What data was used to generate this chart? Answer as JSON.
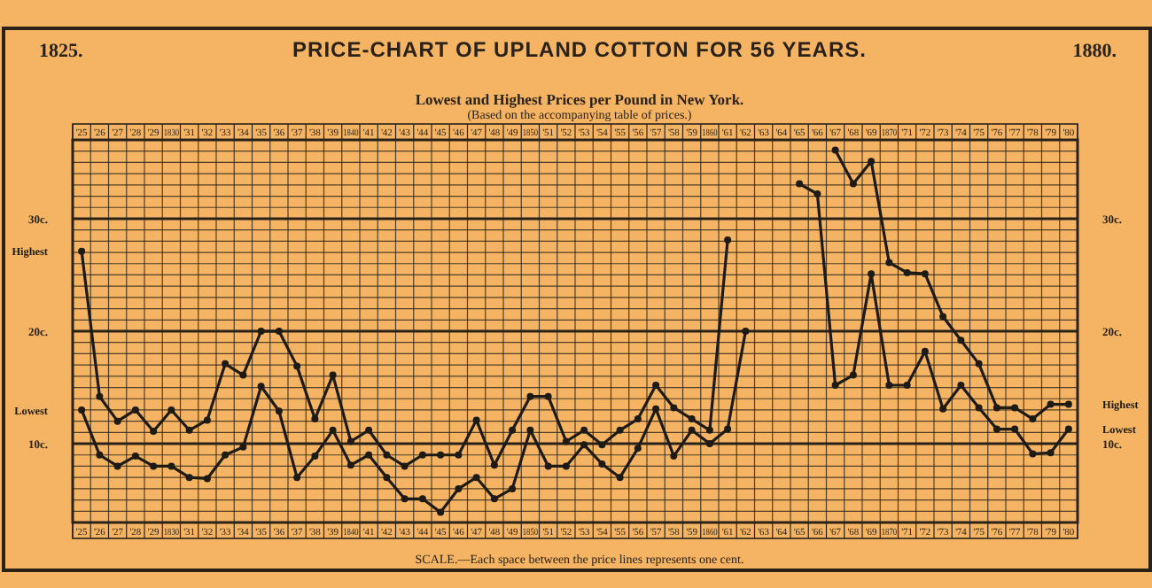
{
  "chart_data": {
    "type": "line",
    "title": "PRICE-CHART OF UPLAND COTTON FOR 56 YEARS.",
    "subtitle": "Lowest and Highest Prices per Pound in New York.",
    "annotations": [
      "1825.",
      "1880.",
      "(Based on the accompanying table of prices.)",
      "SCALE.—Each space between the price lines represents one cent."
    ],
    "categories": [
      "'25",
      "'26",
      "'27",
      "'28",
      "'29",
      "1830",
      "'31",
      "'32",
      "'33",
      "'34",
      "'35",
      "'36",
      "'37",
      "'38",
      "'39",
      "1840",
      "'41",
      "'42",
      "'43",
      "'44",
      "'45",
      "'46",
      "'47",
      "'48",
      "'49",
      "1850",
      "'51",
      "'52",
      "'53",
      "'54",
      "'55",
      "'56",
      "'57",
      "'58",
      "'59",
      "1860",
      "'61",
      "'62",
      "'63",
      "'64",
      "'65",
      "'66",
      "'67",
      "'68",
      "'69",
      "1870",
      "'71",
      "'72",
      "'73",
      "'74",
      "'75",
      "'76",
      "'77",
      "'78",
      "'79",
      "'80"
    ],
    "series": [
      {
        "name": "Highest",
        "color": "#1e1a14",
        "values": [
          27.1,
          14.2,
          12.0,
          13.0,
          11.1,
          13.0,
          11.2,
          12.1,
          17.1,
          16.1,
          20.0,
          20.0,
          16.9,
          12.2,
          16.1,
          10.2,
          11.2,
          9.0,
          8.0,
          9.0,
          9.0,
          9.0,
          12.1,
          8.1,
          11.2,
          14.2,
          14.2,
          10.2,
          11.2,
          9.9,
          11.2,
          12.2,
          15.2,
          13.2,
          12.2,
          11.2,
          28.1,
          null,
          null,
          null,
          null,
          null,
          36.1,
          33.1,
          35.1,
          26.1,
          25.2,
          25.1,
          21.3,
          19.2,
          17.1,
          13.2,
          13.2,
          12.2,
          13.5,
          13.5
        ]
      },
      {
        "name": "Lowest",
        "color": "#1e1a14",
        "values": [
          13.0,
          9.0,
          8.0,
          8.9,
          8.0,
          8.0,
          7.0,
          6.9,
          9.0,
          9.7,
          15.1,
          12.9,
          7.0,
          8.9,
          11.2,
          8.1,
          9.0,
          7.0,
          5.1,
          5.1,
          3.9,
          6.0,
          7.0,
          5.1,
          6.0,
          11.2,
          8.0,
          8.0,
          9.9,
          8.2,
          7.0,
          9.6,
          13.1,
          8.9,
          11.2,
          10.0,
          11.3,
          20.0,
          null,
          null,
          33.1,
          32.2,
          15.2,
          16.1,
          25.1,
          15.2,
          15.2,
          18.2,
          13.1,
          15.2,
          13.2,
          11.3,
          11.3,
          9.1,
          9.2,
          11.3
        ]
      }
    ],
    "ylim": [
      3,
      37
    ],
    "yticks": [
      {
        "value": 4,
        "label": null
      },
      {
        "value": 5,
        "label": null
      },
      {
        "value": 6,
        "label": null
      },
      {
        "value": 7,
        "label": null
      },
      {
        "value": 8,
        "label": null
      },
      {
        "value": 9,
        "label": null
      },
      {
        "value": 10,
        "label": "10c."
      },
      {
        "value": 11,
        "label": null
      },
      {
        "value": 12,
        "label": null
      },
      {
        "value": 13,
        "label": null
      },
      {
        "value": 14,
        "label": null
      },
      {
        "value": 15,
        "label": null
      },
      {
        "value": 16,
        "label": null
      },
      {
        "value": 17,
        "label": null
      },
      {
        "value": 18,
        "label": null
      },
      {
        "value": 19,
        "label": null
      },
      {
        "value": 20,
        "label": "20c."
      },
      {
        "value": 21,
        "label": null
      },
      {
        "value": 22,
        "label": null
      },
      {
        "value": 23,
        "label": null
      },
      {
        "value": 24,
        "label": null
      },
      {
        "value": 25,
        "label": null
      },
      {
        "value": 26,
        "label": null
      },
      {
        "value": 27,
        "label": null
      },
      {
        "value": 28,
        "label": null
      },
      {
        "value": 29,
        "label": null
      },
      {
        "value": 30,
        "label": "30c."
      },
      {
        "value": 31,
        "label": null
      },
      {
        "value": 32,
        "label": null
      },
      {
        "value": 33,
        "label": null
      },
      {
        "value": 34,
        "label": null
      },
      {
        "value": 35,
        "label": null
      },
      {
        "value": 36,
        "label": null
      }
    ],
    "y2lim": [
      3,
      37
    ],
    "y2ticks": [
      {
        "value": 10,
        "label": "10c."
      },
      {
        "value": 20,
        "label": "20c."
      },
      {
        "value": 30,
        "label": "30c."
      }
    ],
    "grid": true,
    "legend": false,
    "marker": "circle",
    "line_style": "solid"
  }
}
